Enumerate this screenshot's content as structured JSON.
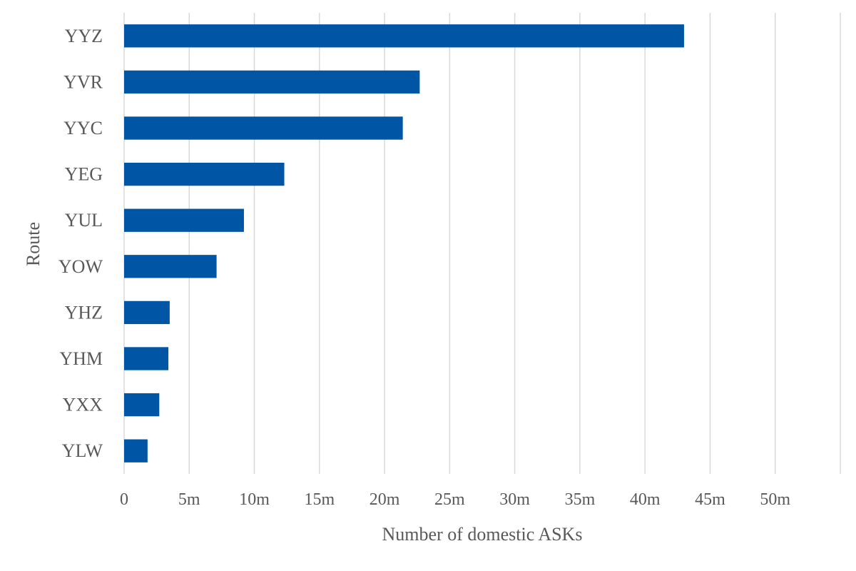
{
  "chart_data": {
    "type": "bar",
    "orientation": "horizontal",
    "title": "",
    "xlabel": "Number of domestic ASKs",
    "ylabel": "Route",
    "categories": [
      "YYZ",
      "YVR",
      "YYC",
      "YEG",
      "YUL",
      "YOW",
      "YHZ",
      "YHM",
      "YXX",
      "YLW"
    ],
    "series": [
      {
        "values": [
          43.0,
          22.7,
          21.4,
          12.3,
          9.2,
          7.1,
          3.5,
          3.4,
          2.7,
          1.8
        ]
      }
    ],
    "value_unit_suffix": "m",
    "xlim": [
      0,
      55
    ],
    "x_ticks": [
      0,
      5,
      10,
      15,
      20,
      25,
      30,
      35,
      40,
      45,
      50,
      55
    ],
    "x_tick_labels": [
      "0",
      "5m",
      "10m",
      "15m",
      "20m",
      "25m",
      "30m",
      "35m",
      "40m",
      "45m",
      "50m",
      ""
    ],
    "grid": "vertical",
    "legend": "none",
    "colors": {
      "bar": "#0055a5",
      "grid": "#d9d9d9",
      "text": "#595959"
    }
  }
}
